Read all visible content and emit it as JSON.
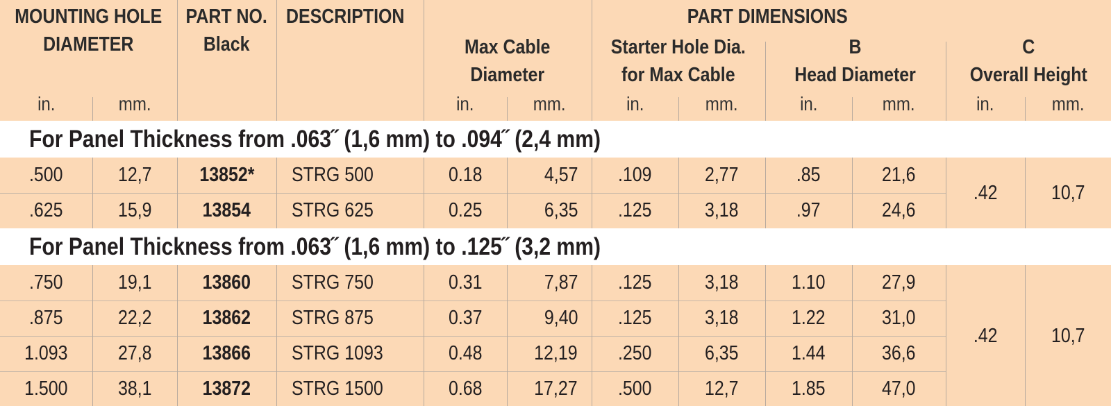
{
  "header": {
    "mounting_hole_diameter": "MOUNTING HOLE\nDIAMETER",
    "part_no": "PART NO.\nBlack",
    "description": "DESCRIPTION",
    "part_dimensions": "PART DIMENSIONS",
    "max_cable_diameter": "Max Cable\nDiameter",
    "starter_hole": "Starter Hole Dia.\nfor Max Cable",
    "b_head_diameter": "B\nHead Diameter",
    "c_overall_height": "C\nOverall Height",
    "units": [
      "in.",
      "mm.",
      "in.",
      "mm.",
      "in.",
      "mm.",
      "in.",
      "mm.",
      "in.",
      "mm."
    ]
  },
  "sections": [
    {
      "title": "For Panel Thickness from .063˝ (1,6 mm) to .094˝ (2,4 mm)",
      "rows": [
        [
          ".500",
          "12,7",
          "13852*",
          "STRG 500",
          "0.18",
          "4,57",
          ".109",
          "2,77",
          ".85",
          "21,6"
        ],
        [
          ".625",
          "15,9",
          "13854",
          "STRG 625",
          "0.25",
          "6,35",
          ".125",
          "3,18",
          ".97",
          "24,6"
        ]
      ],
      "overall_height": [
        ".42",
        "10,7"
      ]
    },
    {
      "title": "For Panel Thickness from .063˝ (1,6 mm) to .125˝ (3,2 mm)",
      "rows": [
        [
          ".750",
          "19,1",
          "13860",
          "STRG 750",
          "0.31",
          "7,87",
          ".125",
          "3,18",
          "1.10",
          "27,9"
        ],
        [
          ".875",
          "22,2",
          "13862",
          "STRG 875",
          "0.37",
          "9,40",
          ".125",
          "3,18",
          "1.22",
          "31,0"
        ],
        [
          "1.093",
          "27,8",
          "13866",
          "STRG 1093",
          "0.48",
          "12,19",
          ".250",
          "6,35",
          "1.44",
          "36,6"
        ],
        [
          "1.500",
          "38,1",
          "13872",
          "STRG 1500",
          "0.68",
          "17,27",
          ".500",
          "12,7",
          "1.85",
          "47,0"
        ]
      ],
      "overall_height": [
        ".42",
        "10,7"
      ]
    }
  ]
}
